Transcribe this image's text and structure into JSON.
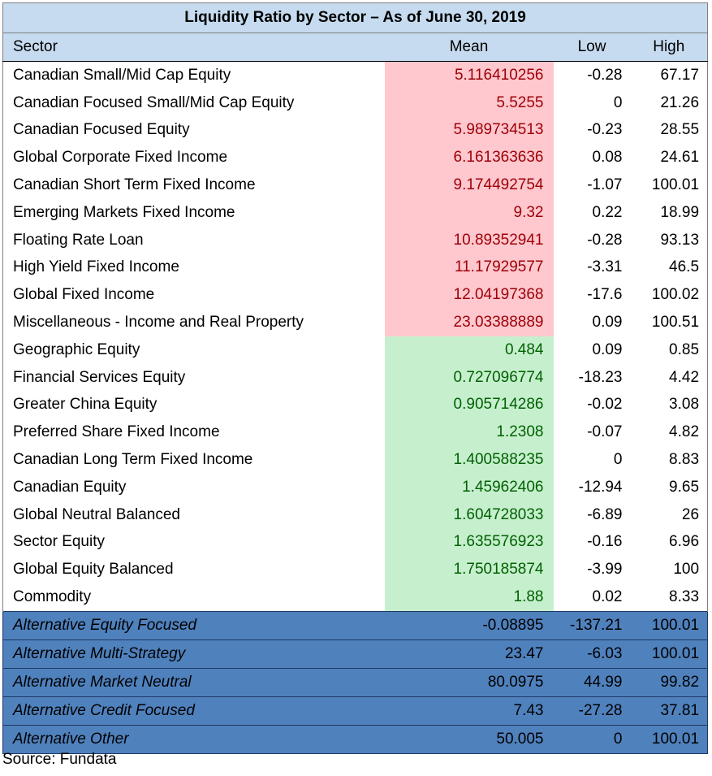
{
  "title": "Liquidity Ratio by Sector – As of June 30, 2019",
  "columns": {
    "sector": "Sector",
    "mean": "Mean",
    "low": "Low",
    "high": "High"
  },
  "rows": [
    {
      "sector": "Canadian Small/Mid Cap Equity",
      "mean": "5.116410256",
      "low": "-0.28",
      "high": "67.17",
      "group": "red"
    },
    {
      "sector": "Canadian Focused Small/Mid Cap Equity",
      "mean": "5.5255",
      "low": "0",
      "high": "21.26",
      "group": "red"
    },
    {
      "sector": "Canadian Focused Equity",
      "mean": "5.989734513",
      "low": "-0.23",
      "high": "28.55",
      "group": "red"
    },
    {
      "sector": "Global Corporate Fixed Income",
      "mean": "6.161363636",
      "low": "0.08",
      "high": "24.61",
      "group": "red"
    },
    {
      "sector": "Canadian Short Term Fixed Income",
      "mean": "9.174492754",
      "low": "-1.07",
      "high": "100.01",
      "group": "red"
    },
    {
      "sector": "Emerging Markets Fixed Income",
      "mean": "9.32",
      "low": "0.22",
      "high": "18.99",
      "group": "red"
    },
    {
      "sector": "Floating Rate Loan",
      "mean": "10.89352941",
      "low": "-0.28",
      "high": "93.13",
      "group": "red"
    },
    {
      "sector": "High Yield Fixed Income",
      "mean": "11.17929577",
      "low": "-3.31",
      "high": "46.5",
      "group": "red"
    },
    {
      "sector": "Global Fixed Income",
      "mean": "12.04197368",
      "low": "-17.6",
      "high": "100.02",
      "group": "red"
    },
    {
      "sector": "Miscellaneous - Income and Real Property",
      "mean": "23.03388889",
      "low": "0.09",
      "high": "100.51",
      "group": "red"
    },
    {
      "sector": "Geographic Equity",
      "mean": "0.484",
      "low": "0.09",
      "high": "0.85",
      "group": "green"
    },
    {
      "sector": "Financial Services Equity",
      "mean": "0.727096774",
      "low": "-18.23",
      "high": "4.42",
      "group": "green"
    },
    {
      "sector": "Greater China Equity",
      "mean": "0.905714286",
      "low": "-0.02",
      "high": "3.08",
      "group": "green"
    },
    {
      "sector": "Preferred Share Fixed Income",
      "mean": "1.2308",
      "low": "-0.07",
      "high": "4.82",
      "group": "green"
    },
    {
      "sector": "Canadian Long Term Fixed Income",
      "mean": "1.400588235",
      "low": "0",
      "high": "8.83",
      "group": "green"
    },
    {
      "sector": "Canadian Equity",
      "mean": "1.45962406",
      "low": "-12.94",
      "high": "9.65",
      "group": "green"
    },
    {
      "sector": "Global Neutral Balanced",
      "mean": "1.604728033",
      "low": "-6.89",
      "high": "26",
      "group": "green"
    },
    {
      "sector": "Sector Equity",
      "mean": "1.635576923",
      "low": "-0.16",
      "high": "6.96",
      "group": "green"
    },
    {
      "sector": "Global Equity Balanced",
      "mean": "1.750185874",
      "low": "-3.99",
      "high": "100",
      "group": "green"
    },
    {
      "sector": "Commodity",
      "mean": "1.88",
      "low": "0.02",
      "high": "8.33",
      "group": "green"
    },
    {
      "sector": "Alternative Equity Focused",
      "mean": "-0.08895",
      "low": "-137.21",
      "high": "100.01",
      "group": "alt"
    },
    {
      "sector": "Alternative Multi-Strategy",
      "mean": "23.47",
      "low": "-6.03",
      "high": "100.01",
      "group": "alt"
    },
    {
      "sector": "Alternative Market Neutral",
      "mean": "80.0975",
      "low": "44.99",
      "high": "99.82",
      "group": "alt"
    },
    {
      "sector": "Alternative Credit Focused",
      "mean": "7.43",
      "low": "-27.28",
      "high": "37.81",
      "group": "alt"
    },
    {
      "sector": "Alternative Other",
      "mean": "50.005",
      "low": "0",
      "high": "100.01",
      "group": "alt"
    }
  ],
  "colors": {
    "header_bg": "#c6dbef",
    "red_fill": "#ffc7ce",
    "red_text": "#9c0006",
    "green_fill": "#c6efce",
    "green_text": "#006100",
    "alt_fill": "#4f81bd"
  },
  "source": "Source: Fundata"
}
